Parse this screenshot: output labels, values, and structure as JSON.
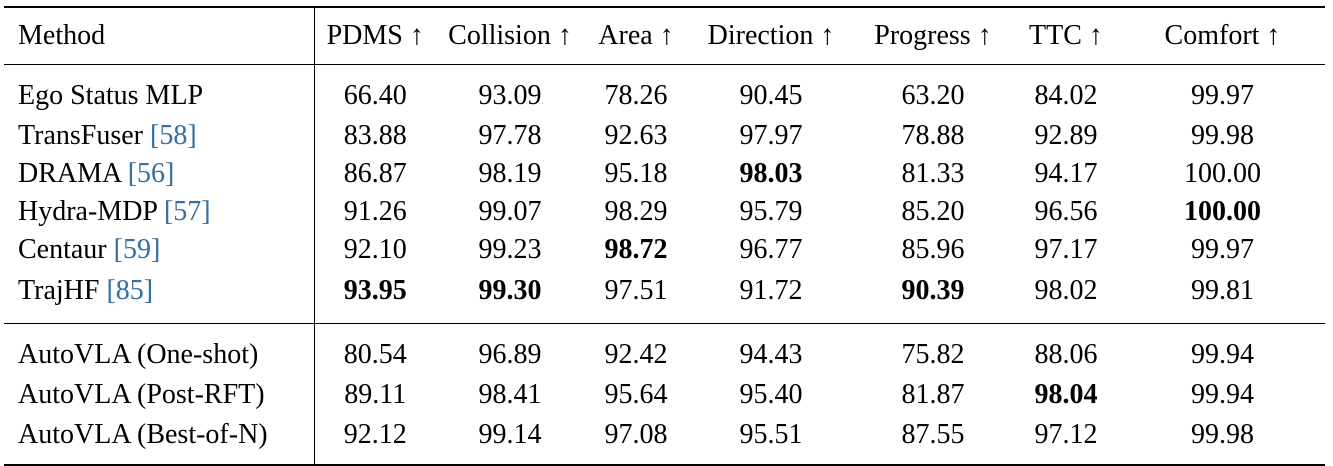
{
  "columns": {
    "method": "Method",
    "pdms": "PDMS ↑",
    "collision": "Collision ↑",
    "area": "Area ↑",
    "direction": "Direction ↑",
    "progress": "Progress ↑",
    "ttc": "TTC ↑",
    "comfort": "Comfort ↑"
  },
  "rows": [
    {
      "name": "Ego Status MLP",
      "cite": "",
      "pdms": "66.40",
      "collision": "93.09",
      "area": "78.26",
      "direction": "90.45",
      "progress": "63.20",
      "ttc": "84.02",
      "comfort": "99.97"
    },
    {
      "name": "TransFuser ",
      "cite": "[58]",
      "pdms": "83.88",
      "collision": "97.78",
      "area": "92.63",
      "direction": "97.97",
      "progress": "78.88",
      "ttc": "92.89",
      "comfort": "99.98"
    },
    {
      "name": "DRAMA ",
      "cite": "[56]",
      "pdms": "86.87",
      "collision": "98.19",
      "area": "95.18",
      "direction": "98.03",
      "progress": "81.33",
      "ttc": "94.17",
      "comfort": "100.00"
    },
    {
      "name": "Hydra-MDP ",
      "cite": "[57]",
      "pdms": "91.26",
      "collision": "99.07",
      "area": "98.29",
      "direction": "95.79",
      "progress": "85.20",
      "ttc": "96.56",
      "comfort": "100.00"
    },
    {
      "name": "Centaur ",
      "cite": "[59]",
      "pdms": "92.10",
      "collision": "99.23",
      "area": "98.72",
      "direction": "96.77",
      "progress": "85.96",
      "ttc": "97.17",
      "comfort": "99.97"
    },
    {
      "name": "TrajHF ",
      "cite": "[85]",
      "pdms": "93.95",
      "collision": "99.30",
      "area": "97.51",
      "direction": "91.72",
      "progress": "90.39",
      "ttc": "98.02",
      "comfort": "99.81"
    },
    {
      "name": "AutoVLA (One-shot)",
      "cite": "",
      "pdms": "80.54",
      "collision": "96.89",
      "area": "92.42",
      "direction": "94.43",
      "progress": "75.82",
      "ttc": "88.06",
      "comfort": "99.94"
    },
    {
      "name": "AutoVLA (Post-RFT)",
      "cite": "",
      "pdms": "89.11",
      "collision": "98.41",
      "area": "95.64",
      "direction": "95.40",
      "progress": "81.87",
      "ttc": "98.04",
      "comfort": "99.94"
    },
    {
      "name": "AutoVLA (Best-of-N)",
      "cite": "",
      "pdms": "92.12",
      "collision": "99.14",
      "area": "97.08",
      "direction": "95.51",
      "progress": "87.55",
      "ttc": "97.12",
      "comfort": "99.98"
    }
  ],
  "colors": {
    "citation": "#2e6fad",
    "text": "#000000",
    "rule": "#000000"
  }
}
